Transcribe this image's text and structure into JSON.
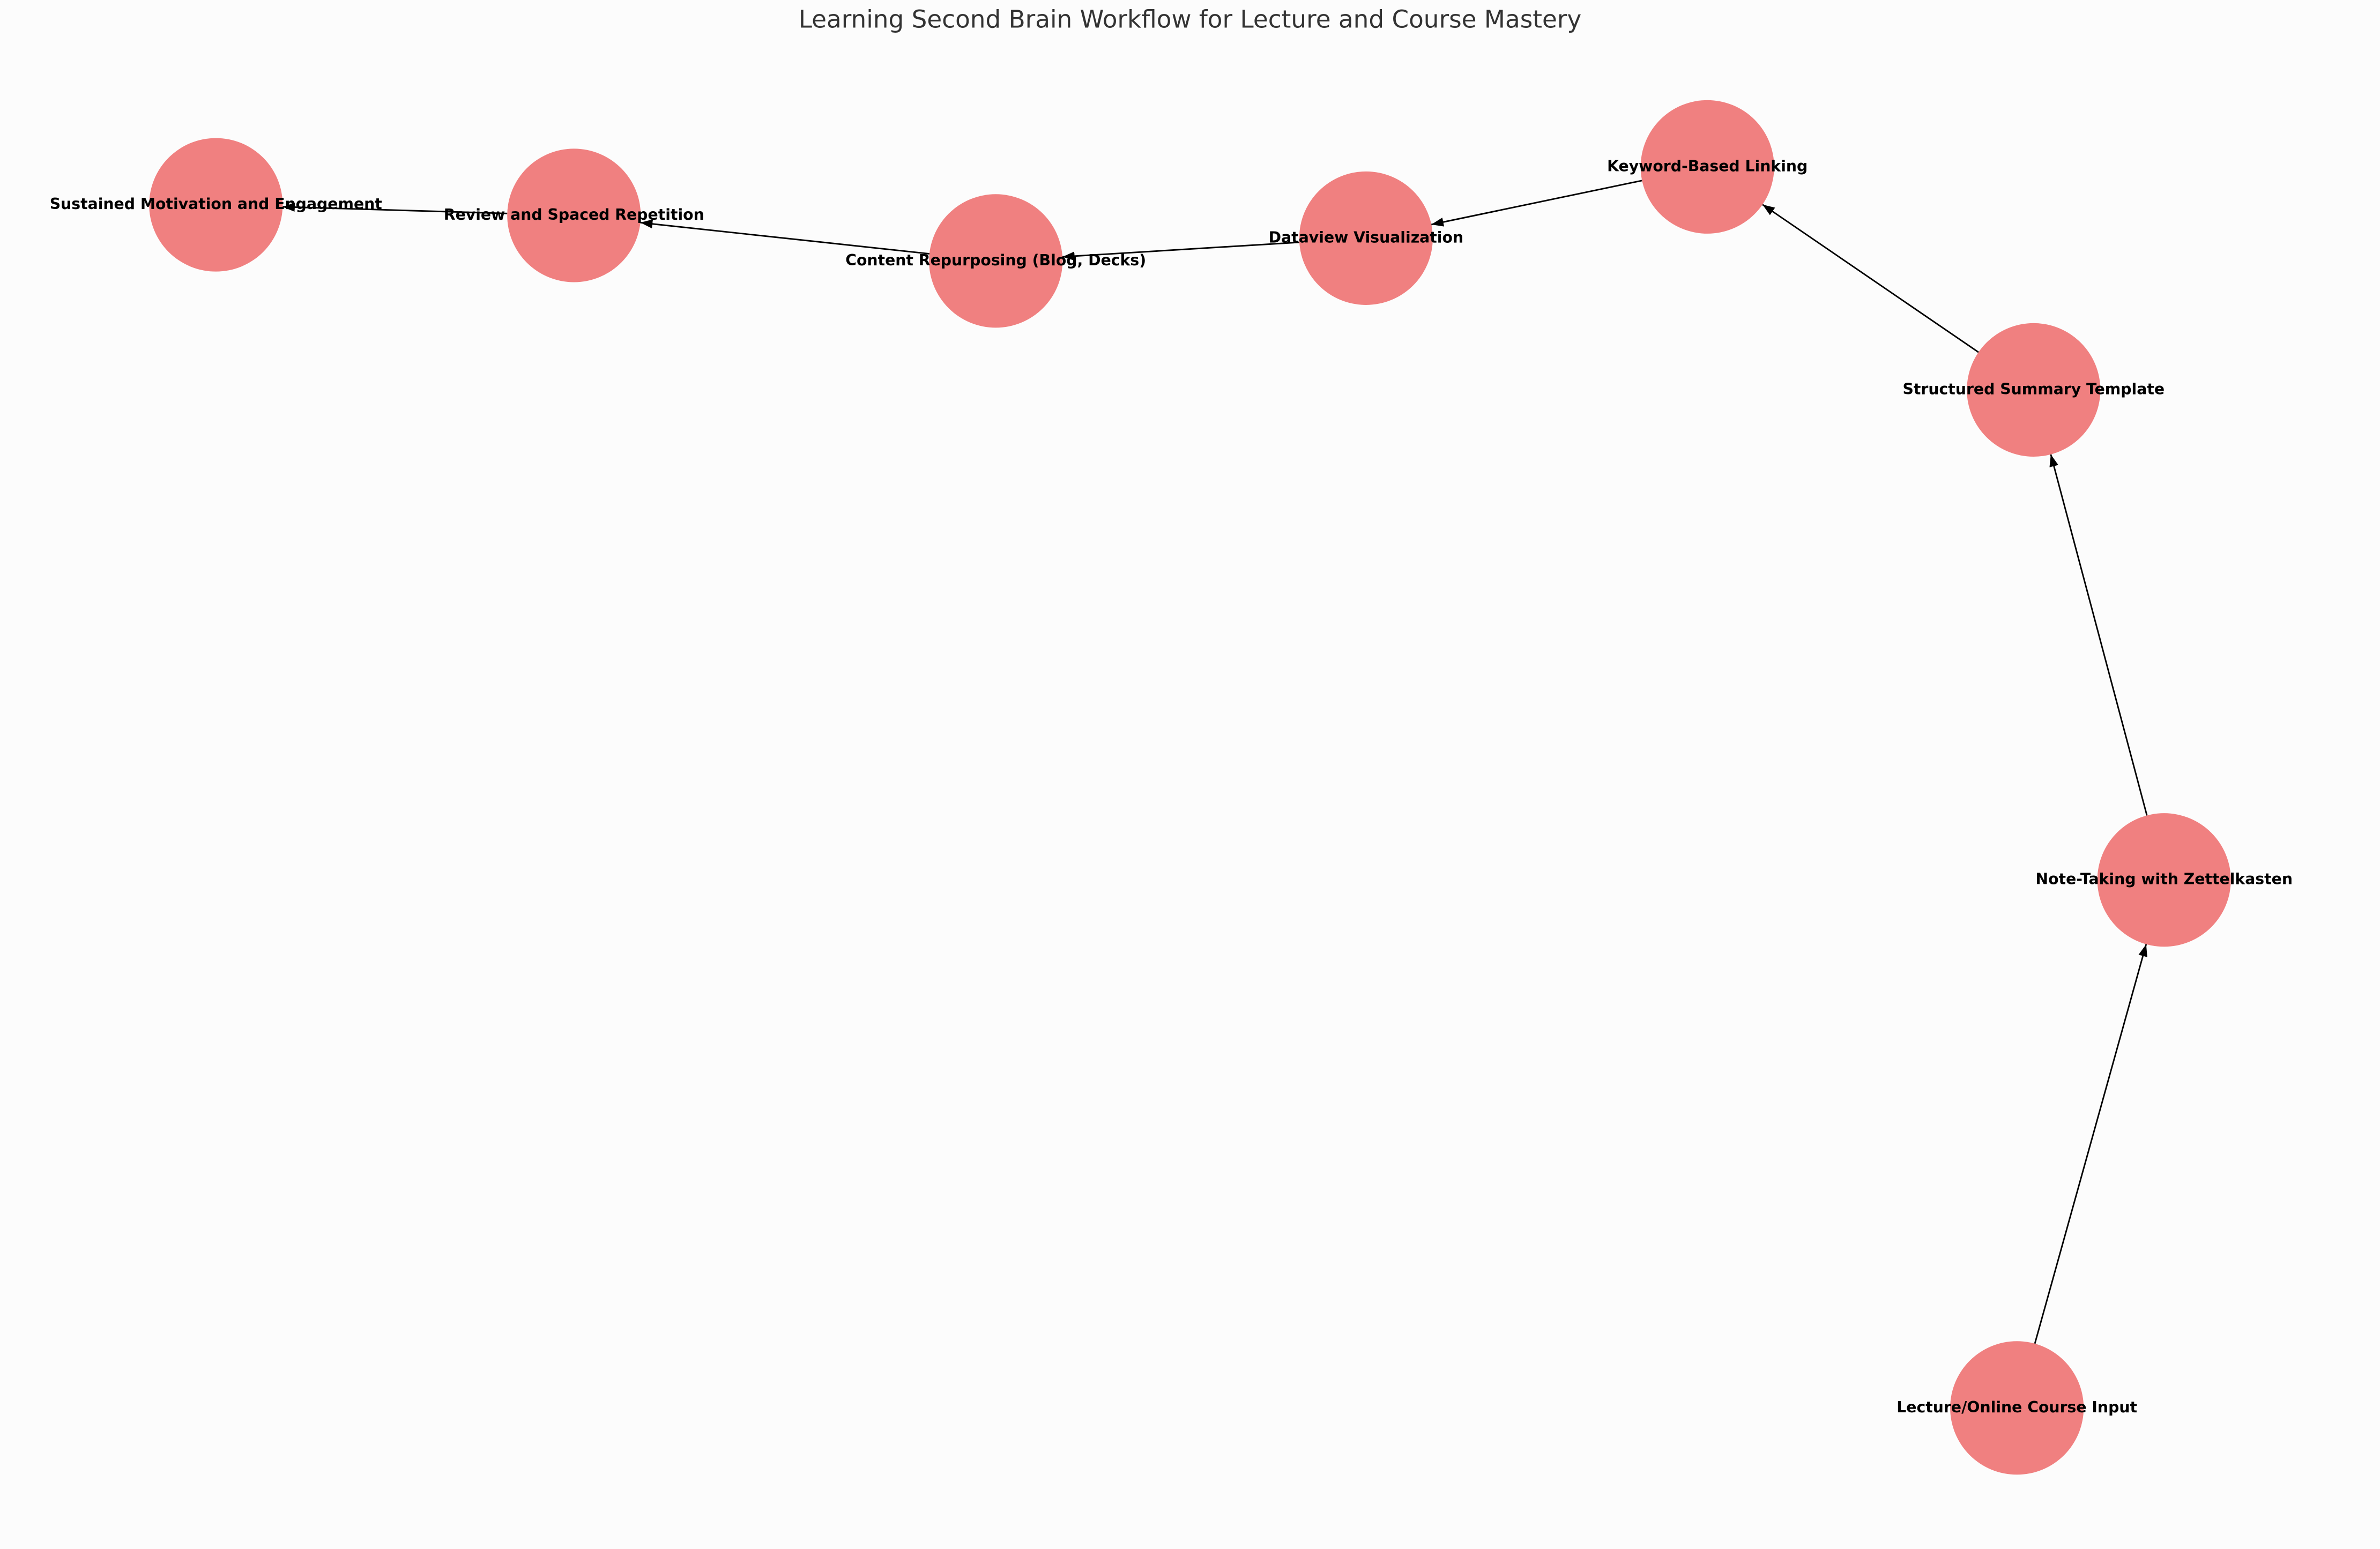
{
  "title": "Learning Second Brain Workflow for Lecture and Course Mastery",
  "nodes": [
    {
      "label": "Lecture/Online Course Input"
    },
    {
      "label": "Note-Taking with Zettelkasten"
    },
    {
      "label": "Structured Summary Template"
    },
    {
      "label": "Keyword-Based Linking"
    },
    {
      "label": "Dataview Visualization"
    },
    {
      "label": "Content Repurposing (Blog, Decks)"
    },
    {
      "label": "Review and Spaced Repetition"
    },
    {
      "label": "Sustained Motivation and Engagement"
    }
  ],
  "edges": [
    {
      "from": "Lecture/Online Course Input",
      "to": "Note-Taking with Zettelkasten"
    },
    {
      "from": "Note-Taking with Zettelkasten",
      "to": "Structured Summary Template"
    },
    {
      "from": "Structured Summary Template",
      "to": "Keyword-Based Linking"
    },
    {
      "from": "Keyword-Based Linking",
      "to": "Dataview Visualization"
    },
    {
      "from": "Dataview Visualization",
      "to": "Content Repurposing (Blog, Decks)"
    },
    {
      "from": "Content Repurposing (Blog, Decks)",
      "to": "Review and Spaced Repetition"
    },
    {
      "from": "Review and Spaced Repetition",
      "to": "Sustained Motivation and Engagement"
    }
  ]
}
